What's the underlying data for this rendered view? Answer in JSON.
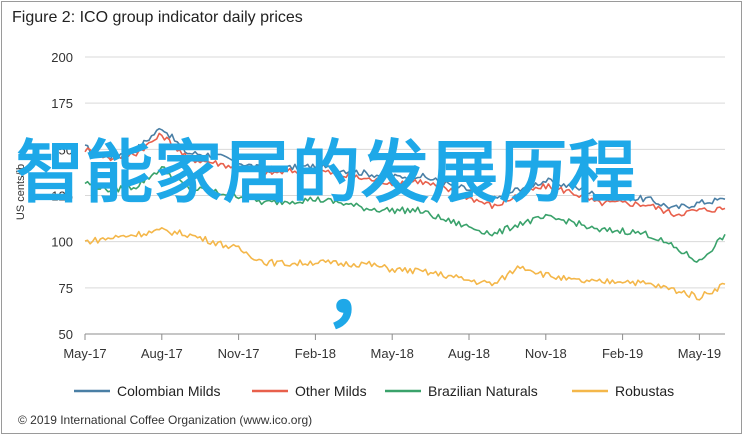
{
  "figure_title": "Figure 2: ICO group indicator daily prices",
  "source_note": "© 2019 International Coffee Organization (www.ico.org)",
  "overlay_text": "智能家居的发展历程",
  "overlay_punct": "，",
  "chart_data": {
    "type": "line",
    "title": "Figure 2: ICO group indicator daily prices",
    "ylabel": "US cents/lb",
    "xlabel": "",
    "ylim": [
      50,
      200
    ],
    "yticks": [
      50,
      75,
      100,
      125,
      150,
      175,
      200
    ],
    "grid": true,
    "legend_position": "bottom",
    "x": [
      "May-17",
      "Jun-17",
      "Jul-17",
      "Aug-17",
      "Sep-17",
      "Oct-17",
      "Nov-17",
      "Dec-17",
      "Jan-18",
      "Feb-18",
      "Mar-18",
      "Apr-18",
      "May-18",
      "Jun-18",
      "Jul-18",
      "Aug-18",
      "Sep-18",
      "Oct-18",
      "Nov-18",
      "Dec-18",
      "Jan-19",
      "Feb-19",
      "Mar-19",
      "Apr-19",
      "May-19",
      "Jun-19"
    ],
    "xticks": [
      "May-17",
      "Aug-17",
      "Nov-17",
      "Feb-18",
      "May-18",
      "Aug-18",
      "Nov-18",
      "Feb-19",
      "May-19"
    ],
    "series": [
      {
        "name": "Colombian Milds",
        "color": "#4a7fa5",
        "values": [
          151,
          146,
          150,
          162,
          148,
          147,
          143,
          139,
          140,
          141,
          139,
          137,
          135,
          136,
          132,
          128,
          123,
          129,
          133,
          130,
          125,
          124,
          123,
          118,
          121,
          123
        ]
      },
      {
        "name": "Other Milds",
        "color": "#e8604c",
        "values": [
          150,
          145,
          148,
          158,
          145,
          143,
          140,
          137,
          138,
          139,
          136,
          134,
          132,
          133,
          129,
          124,
          119,
          126,
          130,
          127,
          121,
          121,
          120,
          115,
          117,
          118
        ]
      },
      {
        "name": "Brazilian Naturals",
        "color": "#3aa26b",
        "values": [
          132,
          128,
          130,
          140,
          129,
          127,
          125,
          121,
          122,
          123,
          121,
          118,
          117,
          117,
          112,
          108,
          104,
          110,
          113,
          111,
          106,
          106,
          104,
          97,
          89,
          104
        ]
      },
      {
        "name": "Robustas",
        "color": "#f4b74a",
        "values": [
          100,
          102,
          104,
          106,
          104,
          100,
          96,
          89,
          88,
          89,
          88,
          88,
          85,
          84,
          82,
          79,
          77,
          87,
          82,
          79,
          78,
          79,
          77,
          74,
          70,
          77
        ]
      }
    ]
  }
}
